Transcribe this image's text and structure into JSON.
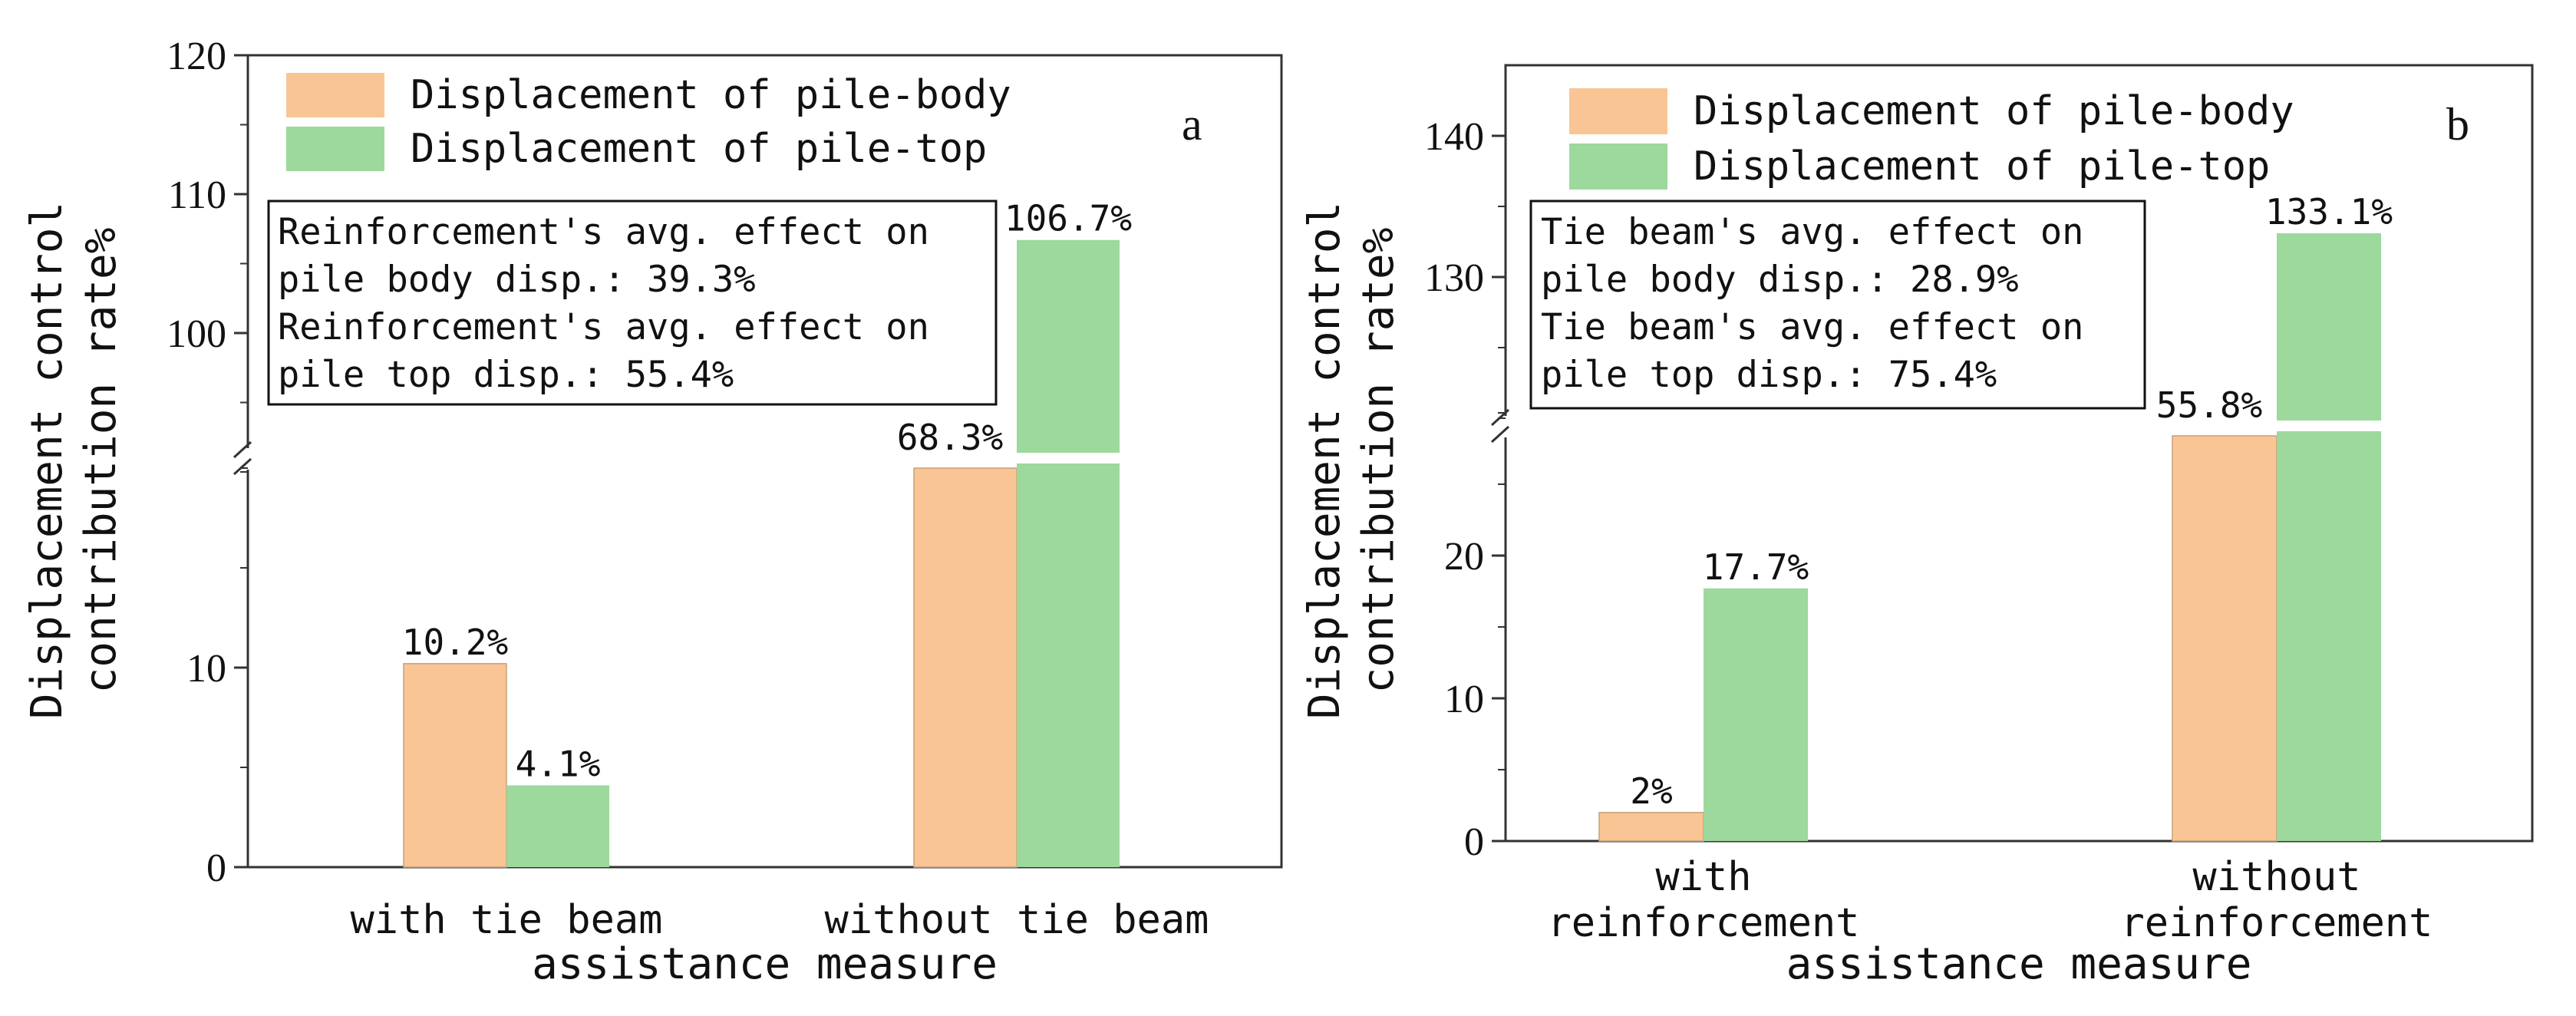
{
  "colors": {
    "body": "#F9C594",
    "top": "#9DD89D",
    "axis": "#333333",
    "text": "#111111"
  },
  "chart_data": [
    {
      "type": "bar",
      "panel_label": "a",
      "ylabel": [
        "Displacement control",
        "contribution rate%"
      ],
      "xlabel": "assistance measure",
      "categories": [
        [
          "with tie beam"
        ],
        [
          "without tie beam"
        ]
      ],
      "series": [
        {
          "name": "Displacement of pile-body",
          "values": [
            10.2,
            68.3
          ],
          "labels": [
            "10.2%",
            "68.3%"
          ]
        },
        {
          "name": "Displacement of pile-top",
          "values": [
            4.1,
            106.7
          ],
          "labels": [
            "4.1%",
            "106.7%"
          ]
        }
      ],
      "axis_break": true,
      "lower_range": [
        0,
        20
      ],
      "upper_range": [
        90,
        120
      ],
      "ticks": [
        "0",
        "10",
        "100",
        "110",
        "120"
      ],
      "annotation": [
        "Reinforcement's avg. effect on",
        "pile body disp.: 39.3%",
        "Reinforcement's avg. effect on",
        "pile top disp.: 55.4%"
      ],
      "legend_position": "top"
    },
    {
      "type": "bar",
      "panel_label": "b",
      "ylabel": [
        "Displacement control",
        "contribution rate%"
      ],
      "xlabel": "assistance measure",
      "categories": [
        [
          "with",
          "reinforcement"
        ],
        [
          "without",
          "reinforcement"
        ]
      ],
      "series": [
        {
          "name": "Displacement of pile-body",
          "values": [
            2,
            55.8
          ],
          "labels": [
            "2%",
            "55.8%"
          ]
        },
        {
          "name": "Displacement of pile-top",
          "values": [
            17.7,
            133.1
          ],
          "labels": [
            "17.7%",
            "133.1%"
          ]
        }
      ],
      "axis_break": true,
      "lower_range": [
        0,
        30
      ],
      "upper_range": [
        120,
        145
      ],
      "ticks": [
        "0",
        "10",
        "20",
        "130",
        "140"
      ],
      "annotation": [
        "Tie beam's avg. effect on",
        "pile body disp.: 28.9%",
        "Tie beam's avg. effect on",
        "pile top disp.: 75.4%"
      ],
      "legend_position": "top"
    }
  ]
}
